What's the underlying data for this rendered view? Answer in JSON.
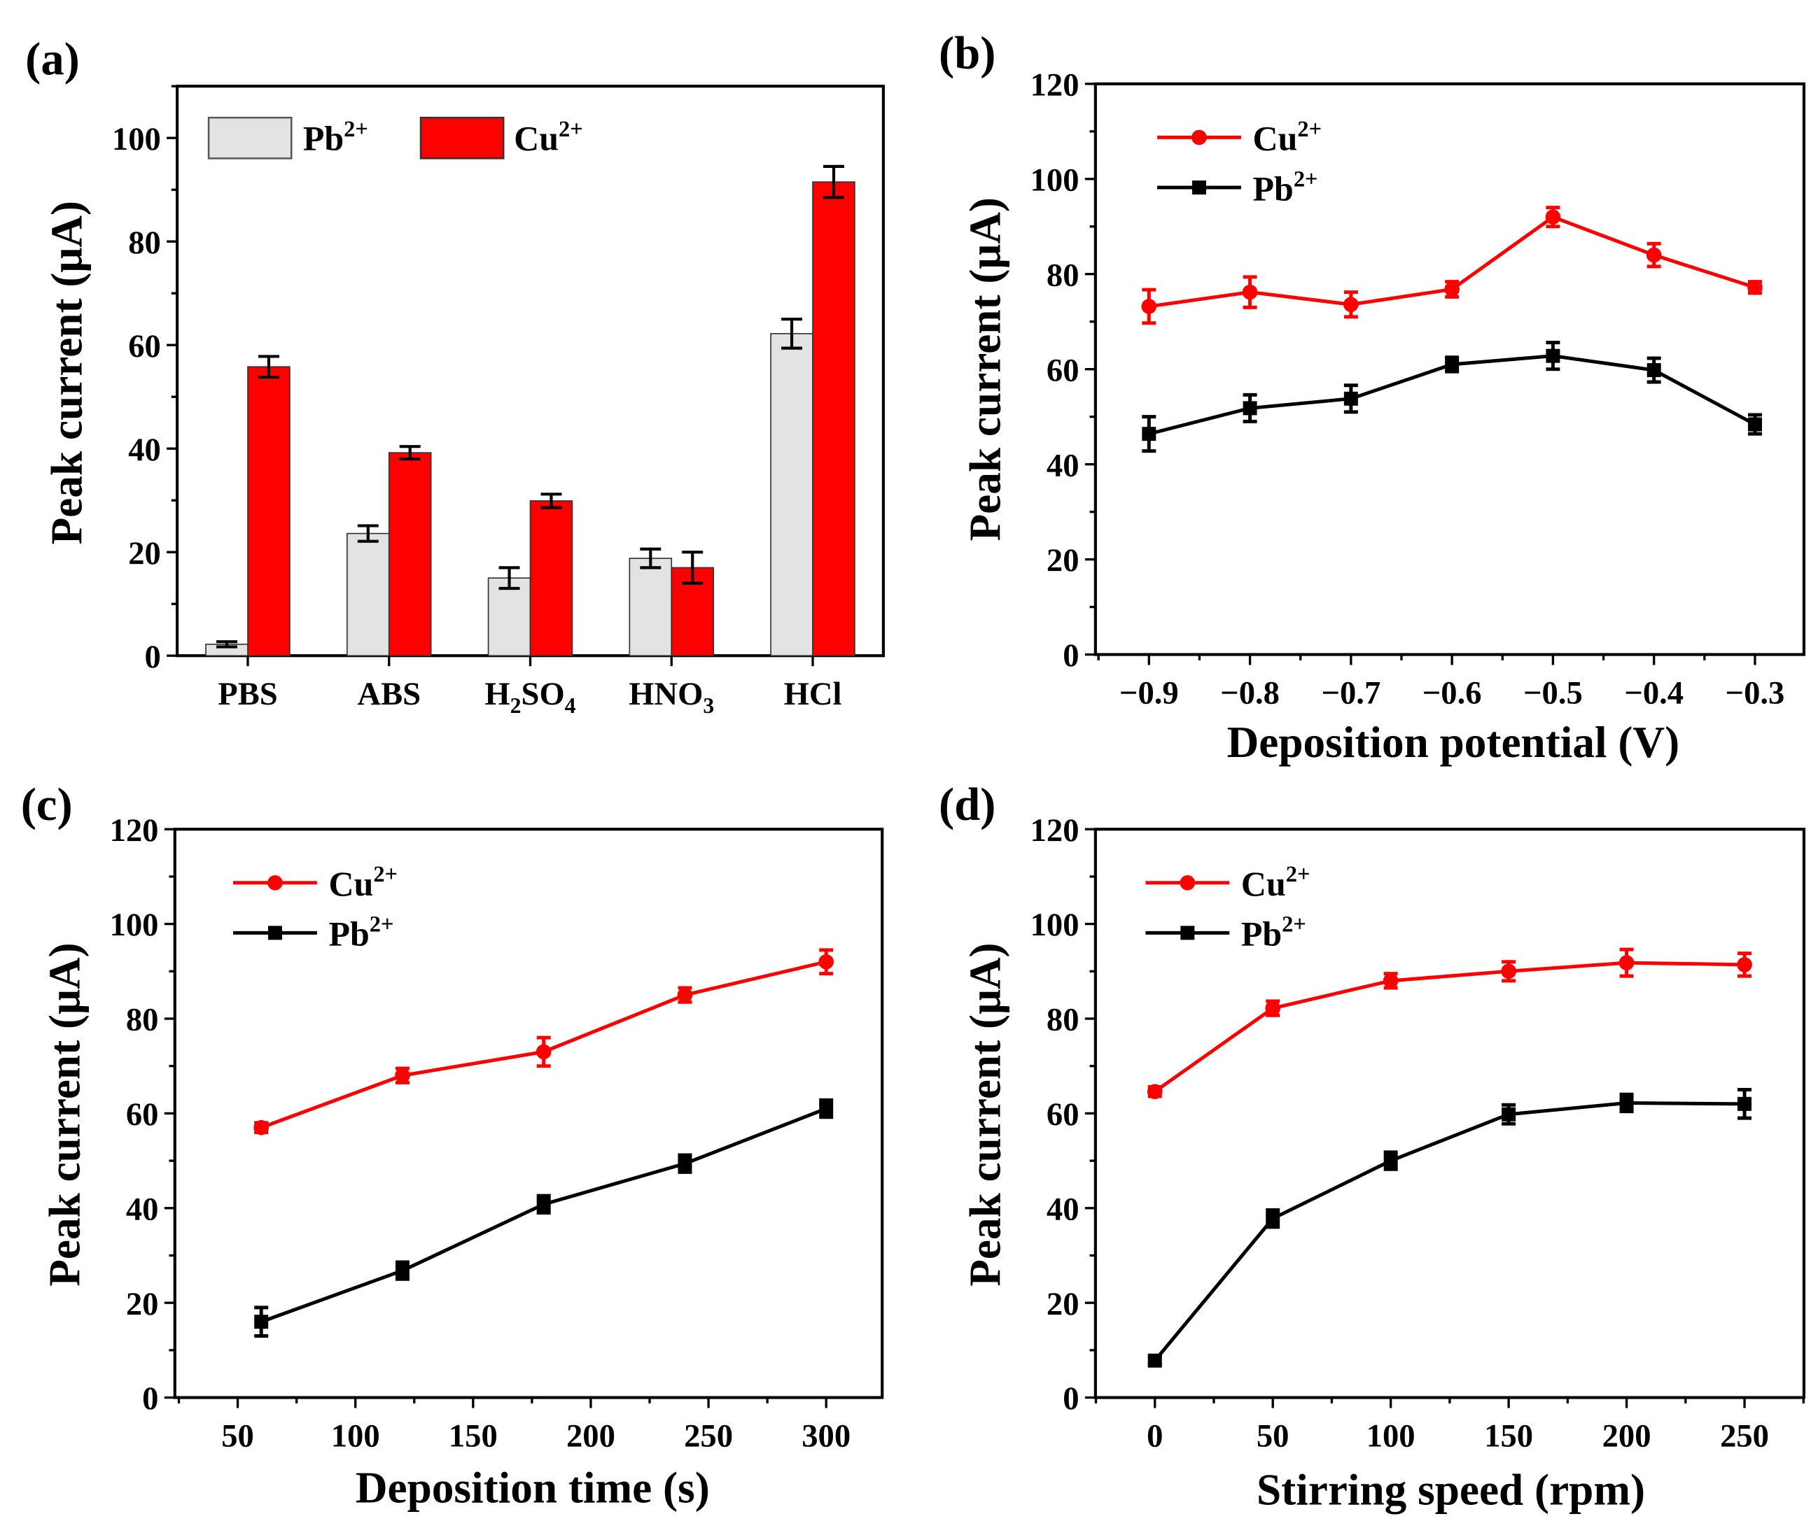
{
  "colors": {
    "cu": "#ff0000",
    "pb": "#000000",
    "pb_bar": "#e3e3e3"
  },
  "chart_data": [
    {
      "id": "a",
      "panel_label": "(a)",
      "type": "bar",
      "ylabel": "Peak current (μA)",
      "xlabel": "",
      "ylim": [
        0,
        110
      ],
      "yticks": [
        0,
        20,
        40,
        60,
        80,
        100
      ],
      "categories": [
        "PBS",
        "ABS",
        "H2SO4",
        "HNO3",
        "HCl"
      ],
      "legend": {
        "placement": "top-left",
        "entries": [
          {
            "name": "Pb",
            "sup": "2+"
          },
          {
            "name": "Cu",
            "sup": "2+"
          }
        ]
      },
      "series": [
        {
          "name": "Pb2+",
          "values": [
            2.2,
            23.6,
            15,
            18.8,
            62.2
          ],
          "errors": [
            0.5,
            1.5,
            2,
            1.8,
            2.8
          ]
        },
        {
          "name": "Cu2+",
          "values": [
            55.8,
            39.2,
            29.9,
            17,
            91.5
          ],
          "errors": [
            2,
            1.2,
            1.3,
            3,
            3
          ]
        }
      ]
    },
    {
      "id": "b",
      "panel_label": "(b)",
      "type": "line",
      "ylabel": "Peak current (μA)",
      "xlabel": "Deposition potential (V)",
      "xlim": [
        -0.953,
        -0.2515
      ],
      "ylim": [
        0,
        120
      ],
      "xticks": [
        -0.9,
        -0.8,
        -0.7,
        -0.6,
        -0.5,
        -0.4,
        -0.3
      ],
      "xtick_labels": [
        "−0.9",
        "−0.8",
        "−0.7",
        "−0.6",
        "−0.5",
        "−0.4",
        "−0.3"
      ],
      "yticks": [
        0,
        20,
        40,
        60,
        80,
        100,
        120
      ],
      "x": [
        -0.9,
        -0.8,
        -0.7,
        -0.6,
        -0.5,
        -0.4,
        -0.3
      ],
      "legend": {
        "placement": "top-left",
        "entries": [
          {
            "name": "Cu",
            "sup": "2+"
          },
          {
            "name": "Pb",
            "sup": "2+"
          }
        ]
      },
      "series": [
        {
          "name": "Cu2+",
          "values": [
            73.2,
            76.2,
            73.6,
            76.8,
            92,
            84,
            77.2
          ],
          "errors": [
            3.5,
            3.2,
            2.6,
            1.6,
            2,
            2.4,
            1.2
          ]
        },
        {
          "name": "Pb2+",
          "values": [
            46.4,
            51.8,
            53.8,
            61,
            62.8,
            59.8,
            48.4
          ],
          "errors": [
            3.6,
            2.8,
            2.8,
            1.5,
            2.8,
            2.5,
            2
          ]
        }
      ]
    },
    {
      "id": "c",
      "panel_label": "(c)",
      "type": "line",
      "ylabel": "Peak current (μA)",
      "xlabel": "Deposition time (s)",
      "xlim": [
        23.3,
        323.8
      ],
      "ylim": [
        0,
        120
      ],
      "xticks": [
        50,
        100,
        150,
        200,
        250,
        300
      ],
      "xtick_labels": [
        "50",
        "100",
        "150",
        "200",
        "250",
        "300"
      ],
      "yticks": [
        0,
        20,
        40,
        60,
        80,
        100,
        120
      ],
      "x": [
        60,
        120,
        180,
        240,
        300
      ],
      "legend": {
        "placement": "top-left",
        "entries": [
          {
            "name": "Cu",
            "sup": "2+"
          },
          {
            "name": "Pb",
            "sup": "2+"
          }
        ]
      },
      "series": [
        {
          "name": "Cu2+",
          "values": [
            57,
            68,
            73,
            85,
            92
          ],
          "errors": [
            1,
            1.5,
            3,
            1.5,
            2.5
          ]
        },
        {
          "name": "Pb2+",
          "values": [
            16,
            26.8,
            40.8,
            49.4,
            61
          ],
          "errors": [
            3,
            1.8,
            1.8,
            1.8,
            1.8
          ]
        }
      ]
    },
    {
      "id": "d",
      "panel_label": "(d)",
      "type": "line",
      "ylabel": "Peak current (μA)",
      "xlabel": "Stirring speed (rpm)",
      "xlim": [
        -25.2,
        275.2
      ],
      "ylim": [
        0,
        120
      ],
      "xticks": [
        0,
        50,
        100,
        150,
        200,
        250
      ],
      "xtick_labels": [
        "0",
        "50",
        "100",
        "150",
        "200",
        "250"
      ],
      "yticks": [
        0,
        20,
        40,
        60,
        80,
        100,
        120
      ],
      "x": [
        0,
        50,
        100,
        150,
        200,
        250
      ],
      "legend": {
        "placement": "top-left",
        "entries": [
          {
            "name": "Cu",
            "sup": "2+"
          },
          {
            "name": "Pb",
            "sup": "2+"
          }
        ]
      },
      "series": [
        {
          "name": "Cu2+",
          "values": [
            64.6,
            82.2,
            88,
            90,
            91.8,
            91.4
          ],
          "errors": [
            1,
            1.5,
            1.5,
            2,
            2.8,
            2.4
          ]
        },
        {
          "name": "Pb2+",
          "values": [
            7.8,
            37.8,
            50,
            59.8,
            62.2,
            62
          ],
          "errors": [
            0.8,
            1.8,
            1.8,
            2,
            1.8,
            3
          ]
        }
      ]
    }
  ]
}
